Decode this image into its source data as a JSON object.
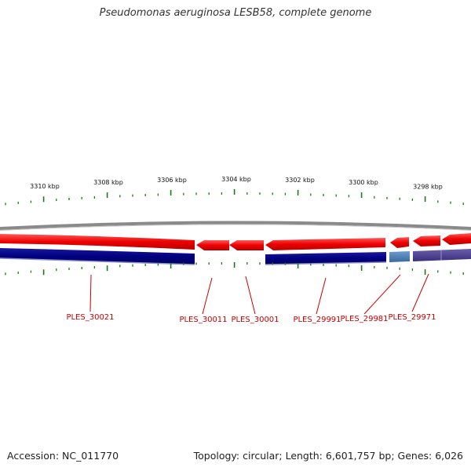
{
  "title": "Pseudomonas aeruginosa LESB58, complete genome",
  "footer": {
    "accession": "Accession: NC_011770",
    "topology": "Topology: circular; Length: 6,601,757 bp; Genes: 6,026"
  },
  "scale_labels": [
    "3310 kbp",
    "3308 kbp",
    "3306 kbp",
    "3304 kbp",
    "3302 kbp",
    "3300 kbp",
    "3298 kbp"
  ],
  "gene_labels": [
    "PLES_30021",
    "PLES_30011",
    "PLES_30001",
    "PLES_29991",
    "PLES_29981",
    "PLES_29971"
  ],
  "colors": {
    "forward_feature": "#ee0000",
    "reverse_feature": "#000080",
    "reverse_feature_light": "#4a7bb0",
    "reverse_feature_purple": "#4a3e8c",
    "backbone": "#8a8a8a",
    "tick": "#1a7a1a",
    "label": "#cc0000"
  }
}
